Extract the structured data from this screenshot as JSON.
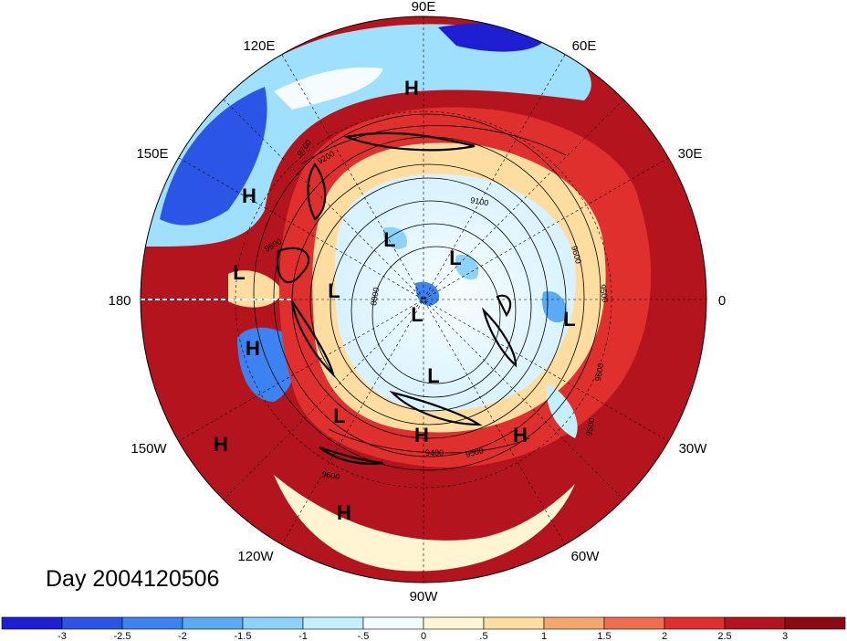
{
  "title": "Day 2004120506",
  "longitude_labels": {
    "top": "90E",
    "upper_left": "120E",
    "upper_right": "60E",
    "left_upper": "150E",
    "right_upper": "30E",
    "left": "180",
    "right": "0",
    "left_lower": "150W",
    "right_lower": "30W",
    "lower_left": "120W",
    "lower_right": "60W",
    "bottom": "90W"
  },
  "pressure_systems": [
    "H",
    "H",
    "H",
    "H",
    "H",
    "H",
    "H",
    "L",
    "L",
    "L",
    "L",
    "L",
    "L",
    "L",
    "L"
  ],
  "contour_labels": [
    "9700",
    "9200",
    "9100",
    "9600",
    "8800",
    "9600",
    "9500",
    "9400",
    "9600",
    "9500",
    "9600",
    "9500"
  ],
  "colorbar": {
    "ticks": [
      "-3",
      "-2.5",
      "-2",
      "-1.5",
      "-1",
      "-.5",
      "0",
      ".5",
      "1",
      "1.5",
      "2",
      "2.5",
      "3"
    ],
    "colors": [
      "#1e1ed2",
      "#2b55e6",
      "#3c82f0",
      "#5aaaf5",
      "#8cd2fa",
      "#c3f0ff",
      "#f0fdff",
      "#fff5d2",
      "#ffdca0",
      "#f5a56e",
      "#f06e50",
      "#e0302e",
      "#b4141e",
      "#8c0a14"
    ]
  }
}
